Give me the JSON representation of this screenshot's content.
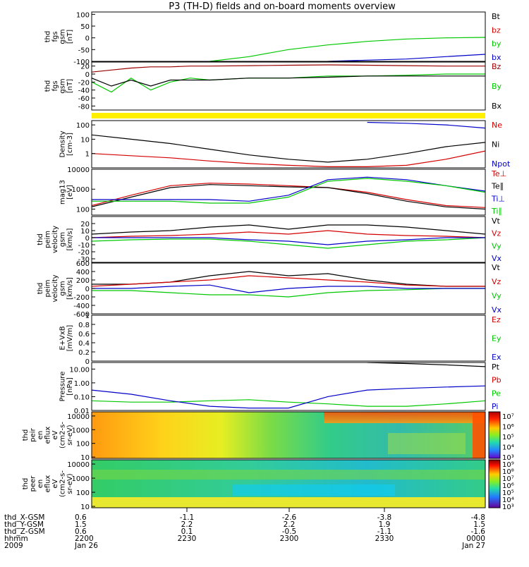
{
  "title": "P3 (TH-D) fields and on-board moments overview",
  "chart_data": [
    {
      "type": "line",
      "id": "fgs-low",
      "ylabel": [
        "thd",
        "fgs",
        "gsm",
        "[nT]"
      ],
      "ylim": [
        -100,
        110
      ],
      "yticks": [
        100,
        50,
        0,
        -50,
        -100
      ],
      "legend": [
        "Bt",
        "bz",
        "by",
        "bx"
      ],
      "colors": [
        "#000000",
        "#d40000",
        "#00c800",
        "#0000c8"
      ],
      "x": [
        0,
        0.25,
        0.3,
        0.4,
        0.5,
        0.6,
        0.7,
        0.8,
        0.9,
        1.0
      ],
      "series": [
        {
          "values": [
            null,
            null,
            null,
            null,
            null,
            null,
            null,
            null,
            null,
            null
          ]
        },
        {
          "values": [
            null,
            null,
            null,
            null,
            null,
            null,
            null,
            null,
            null,
            null
          ]
        },
        {
          "values": [
            null,
            null,
            -100,
            -80,
            -50,
            -30,
            -15,
            -5,
            0,
            2
          ]
        },
        {
          "values": [
            null,
            null,
            null,
            null,
            null,
            -100,
            -95,
            -90,
            -80,
            -70
          ]
        }
      ]
    },
    {
      "type": "line",
      "id": "fgs-high",
      "ylabel": [
        "thd",
        "fgs",
        "gsm",
        "[nT]"
      ],
      "ylim": [
        -90,
        30
      ],
      "yticks": [
        20,
        0,
        -20,
        -40,
        -60,
        -80
      ],
      "legend": [
        "Bz",
        "By",
        "Bx"
      ],
      "colors": [
        "#9a0000",
        "#00c800",
        "#000000"
      ],
      "x": [
        0,
        0.05,
        0.1,
        0.15,
        0.2,
        0.25,
        0.3,
        0.4,
        0.5,
        0.6,
        0.7,
        0.8,
        0.9,
        1.0
      ],
      "series": [
        {
          "values": [
            5,
            10,
            15,
            18,
            18,
            20,
            20,
            21,
            22,
            23,
            22,
            21,
            20,
            20
          ]
        },
        {
          "values": [
            -20,
            -45,
            -10,
            -40,
            -20,
            -10,
            -15,
            -10,
            -10,
            -5,
            -5,
            -3,
            0,
            0
          ]
        },
        {
          "values": [
            -10,
            -30,
            -15,
            -30,
            -15,
            -15,
            -15,
            -10,
            -10,
            -8,
            -5,
            -5,
            -5,
            -5
          ]
        }
      ]
    },
    {
      "type": "line",
      "id": "density",
      "ylabel": [
        "Density",
        "[cm-3]"
      ],
      "ylim": [
        0.1,
        200
      ],
      "log": true,
      "yticks": [
        100,
        10,
        1
      ],
      "legend": [
        "Ne",
        "Ni",
        "Npot"
      ],
      "colors": [
        "#d40000",
        "#000000",
        "#0000c8"
      ],
      "x": [
        0,
        0.1,
        0.2,
        0.3,
        0.4,
        0.5,
        0.6,
        0.7,
        0.8,
        0.9,
        1.0
      ],
      "series": [
        {
          "values": [
            1,
            0.7,
            0.5,
            0.3,
            0.2,
            0.15,
            0.12,
            0.12,
            0.15,
            0.4,
            1.5
          ]
        },
        {
          "values": [
            20,
            10,
            5,
            2,
            0.8,
            0.4,
            0.25,
            0.4,
            1,
            3,
            6
          ]
        },
        {
          "values": [
            null,
            null,
            null,
            null,
            null,
            null,
            null,
            150,
            130,
            100,
            60
          ]
        }
      ]
    },
    {
      "type": "line",
      "id": "temperature",
      "ylabel": [
        "mag13",
        "[eV]"
      ],
      "ylim": [
        50,
        10000
      ],
      "log": true,
      "yticks": [
        10000,
        1000,
        100
      ],
      "legend": [
        "Te⊥",
        "Te∥",
        "Ti⊥",
        "Ti∥"
      ],
      "colors": [
        "#d40000",
        "#000000",
        "#0000c8",
        "#00c800"
      ],
      "x": [
        0,
        0.1,
        0.2,
        0.3,
        0.4,
        0.5,
        0.6,
        0.7,
        0.8,
        0.9,
        1.0
      ],
      "series": [
        {
          "values": [
            150,
            500,
            1500,
            2000,
            1800,
            1500,
            1200,
            700,
            300,
            150,
            120
          ]
        },
        {
          "values": [
            130,
            400,
            1200,
            1700,
            1500,
            1300,
            1200,
            600,
            250,
            130,
            100
          ]
        },
        {
          "values": [
            300,
            300,
            300,
            300,
            250,
            500,
            3000,
            4000,
            3000,
            1500,
            800
          ]
        },
        {
          "values": [
            250,
            250,
            250,
            200,
            200,
            400,
            2500,
            3500,
            2500,
            1500,
            700
          ]
        }
      ]
    },
    {
      "type": "line",
      "id": "velocity-low",
      "ylabel": [
        "thd",
        "peim",
        "velocity",
        "gsm",
        "[km/s]"
      ],
      "ylim": [
        -35,
        30
      ],
      "yticks": [
        20,
        10,
        0,
        -10,
        -20,
        -30
      ],
      "legend": [
        "Vt",
        "Vz",
        "Vy",
        "Vx"
      ],
      "colors": [
        "#000000",
        "#d40000",
        "#00c800",
        "#0000c8"
      ],
      "x": [
        0,
        0.1,
        0.2,
        0.3,
        0.4,
        0.5,
        0.6,
        0.7,
        0.8,
        0.9,
        1.0
      ],
      "series": [
        {
          "values": [
            5,
            8,
            10,
            15,
            18,
            12,
            18,
            18,
            15,
            10,
            5
          ]
        },
        {
          "values": [
            0,
            2,
            3,
            5,
            8,
            5,
            10,
            5,
            3,
            2,
            0
          ]
        },
        {
          "values": [
            -5,
            -3,
            -2,
            -2,
            -5,
            -10,
            -15,
            -10,
            -5,
            -3,
            0
          ]
        },
        {
          "values": [
            0,
            0,
            0,
            0,
            -3,
            -5,
            -10,
            -5,
            -3,
            0,
            0
          ]
        }
      ]
    },
    {
      "type": "line",
      "id": "velocity-high",
      "ylabel": [
        "thd",
        "peim",
        "velocity",
        "gsm",
        "[km/s]"
      ],
      "ylim": [
        -600,
        600
      ],
      "yticks": [
        600,
        400,
        200,
        0,
        -200,
        -400,
        -600
      ],
      "legend": [
        "Vt",
        "Vz",
        "Vy",
        "Vx"
      ],
      "colors": [
        "#000000",
        "#d40000",
        "#00c800",
        "#0000c8"
      ],
      "x": [
        0,
        0.1,
        0.2,
        0.3,
        0.4,
        0.5,
        0.6,
        0.7,
        0.8,
        0.9,
        1.0
      ],
      "series": [
        {
          "values": [
            100,
            100,
            150,
            300,
            400,
            300,
            350,
            200,
            100,
            50,
            50
          ]
        },
        {
          "values": [
            50,
            100,
            150,
            200,
            300,
            250,
            200,
            150,
            80,
            50,
            50
          ]
        },
        {
          "values": [
            -50,
            -50,
            -100,
            -150,
            -150,
            -200,
            -100,
            -50,
            -30,
            0,
            0
          ]
        },
        {
          "values": [
            0,
            0,
            50,
            80,
            -100,
            0,
            50,
            50,
            0,
            0,
            0
          ]
        }
      ]
    },
    {
      "type": "line",
      "id": "e-field",
      "ylabel": [
        "E+VxB",
        "[mV/m]"
      ],
      "ylim": [
        0,
        1
      ],
      "yticks": [
        1.0,
        0.8,
        0.6,
        0.4,
        0.2,
        0.0
      ],
      "legend": [
        "Ez",
        "Ey",
        "Ex"
      ],
      "colors": [
        "#d40000",
        "#00c800",
        "#0000c8"
      ],
      "x": [],
      "series": []
    },
    {
      "type": "line",
      "id": "pressure",
      "ylabel": [
        "Pressure",
        "[nPa]"
      ],
      "ylim": [
        0.01,
        30
      ],
      "log": true,
      "yticks": [
        10.0,
        1.0,
        0.1,
        0.01
      ],
      "ytick_labels": [
        "10.00",
        "1.00",
        "0.10",
        "0.01"
      ],
      "legend": [
        "Pt",
        "Pb",
        "Pe",
        "Pi"
      ],
      "colors": [
        "#000000",
        "#d40000",
        "#00c800",
        "#0000c8"
      ],
      "x": [
        0,
        0.1,
        0.2,
        0.3,
        0.4,
        0.5,
        0.6,
        0.7,
        0.8,
        0.9,
        1.0
      ],
      "series": [
        {
          "values": [
            null,
            null,
            null,
            null,
            null,
            null,
            null,
            30,
            25,
            20,
            15
          ]
        },
        {
          "values": [
            null,
            null,
            null,
            null,
            null,
            null,
            null,
            null,
            null,
            null,
            null
          ]
        },
        {
          "values": [
            0.05,
            0.04,
            0.04,
            0.05,
            0.06,
            0.04,
            0.03,
            0.02,
            0.02,
            0.03,
            0.05
          ]
        },
        {
          "values": [
            0.3,
            0.15,
            0.05,
            0.02,
            0.015,
            0.015,
            0.1,
            0.3,
            0.4,
            0.5,
            0.6
          ]
        }
      ]
    },
    {
      "type": "heatmap",
      "id": "ion-spectrogram",
      "ylabel": [
        "thd",
        "peir",
        "en",
        "eflux",
        "eV",
        "(cm2-s-",
        "sr-eV)"
      ],
      "yticks": [
        10000,
        1000,
        100,
        10
      ],
      "colorbar": [
        "10⁷",
        "10⁶",
        "10⁵",
        "10⁴",
        "10³"
      ]
    },
    {
      "type": "heatmap",
      "id": "electron-spectrogram",
      "ylabel": [
        "thd",
        "peer",
        "en",
        "eflux",
        "eV",
        "(cm2-s-",
        "sr-eV)"
      ],
      "yticks": [
        10000,
        1000,
        100,
        10
      ],
      "colorbar": [
        "10⁹",
        "10⁸",
        "10⁷",
        "10⁶",
        "10⁵",
        "10⁴",
        "10³"
      ]
    }
  ],
  "footer": {
    "row_labels": [
      "thd_X-GSM",
      "thd_Y-GSM",
      "thd_Z-GSM",
      "hhmm",
      "2009"
    ],
    "columns": [
      {
        "values": [
          "0.6",
          "1.5",
          "0.6",
          "2200",
          "Jan 26"
        ]
      },
      {
        "values": [
          "-1.1",
          "2.2",
          "0.1",
          "2230",
          ""
        ]
      },
      {
        "values": [
          "-2.6",
          "2.2",
          "-0.5",
          "2300",
          ""
        ]
      },
      {
        "values": [
          "-3.8",
          "1.9",
          "-1.1",
          "2330",
          ""
        ]
      },
      {
        "values": [
          "-4.8",
          "1.5",
          "-1.6",
          "0000",
          "Jan 27"
        ]
      }
    ]
  },
  "colors": {
    "quality_bar": "#ffef00",
    "axis": "#000000"
  }
}
